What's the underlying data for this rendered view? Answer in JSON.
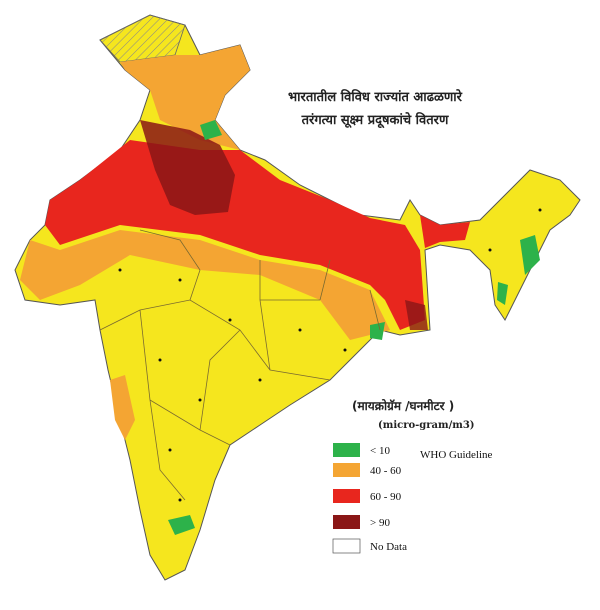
{
  "header": {
    "title_line1": "भारतातील विविध राज्यांत आढळणारे",
    "title_line2": "तरंगत्या सूक्ष्म प्रदूषकांचे वितरण"
  },
  "legend": {
    "unit_marathi": "(मायक्रोग्रॅम /घनमीटर )",
    "unit_english": "(micro-gram/m3)",
    "note": "WHO Guideline",
    "items": [
      {
        "label": "< 10",
        "color": "#2db24a"
      },
      {
        "label": "40 - 60",
        "color": "#f4a533"
      },
      {
        "label": "60 - 90",
        "color": "#e8261e"
      },
      {
        "label": "> 90",
        "color": "#8a1616"
      },
      {
        "label": "No Data",
        "color": "#ffffff"
      }
    ]
  }
}
